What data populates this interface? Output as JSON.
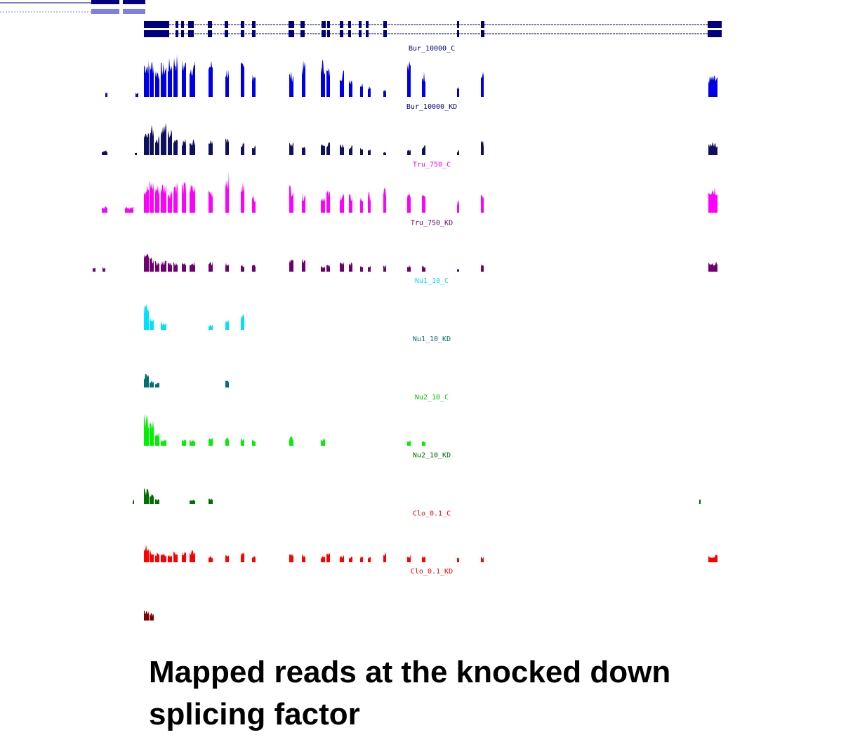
{
  "tracks": [
    {
      "label": "Bur_10000_C"
    },
    {
      "label": "Bur_10000_KD"
    },
    {
      "label": "Tru_750_C"
    },
    {
      "label": "Tru_750_KD"
    },
    {
      "label": "Nu1_10_C"
    },
    {
      "label": "Nu1_10_KD"
    },
    {
      "label": "Nu2_10_C"
    },
    {
      "label": "Nu2_10_KD"
    },
    {
      "label": "Clo_0.1_C"
    },
    {
      "label": "Clo_0.1_KD"
    }
  ],
  "caption": "Mapped reads at the knocked down splicing factor"
}
